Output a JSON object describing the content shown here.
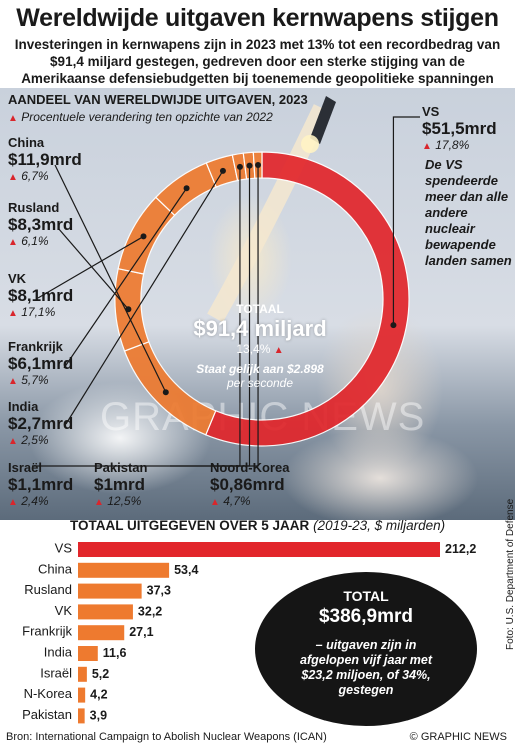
{
  "header": {
    "title": "Wereldwijde uitgaven kernwapens stijgen",
    "subtitle": "Investeringen in kernwapens zijn in 2023 met 13% tot een recordbedrag van $91,4 miljard gestegen, gedreven door een sterke stijging van de Amerikaanse defensiebudgetten bij toenemende geopolitieke spanningen"
  },
  "donut": {
    "heading": "AANDEEL VAN WERELDWIJDE UITGAVEN, 2023",
    "note": "Procentuele verandering ten opzichte van 2022",
    "total_label": "TOTAAL",
    "total_value": "$91,4 miljard",
    "total_change": "13,4%",
    "per_second_line1": "Staat gelijk aan $2.898",
    "per_second_line2": "per seconde",
    "us_note": "De VS spendeerde meer dan alle andere nucleair bewapende landen samen",
    "colors": {
      "us": "#e2262b",
      "others": "#ee7a2f",
      "marker": "#d9262c"
    }
  },
  "labels": {
    "us": {
      "name": "VS",
      "value": "$51,5mrd",
      "pct": "17,8%"
    },
    "china": {
      "name": "China",
      "value": "$11,9mrd",
      "pct": "6,7%"
    },
    "russia": {
      "name": "Rusland",
      "value": "$8,3mrd",
      "pct": "6,1%"
    },
    "uk": {
      "name": "VK",
      "value": "$8,1mrd",
      "pct": "17,1%"
    },
    "france": {
      "name": "Frankrijk",
      "value": "$6,1mrd",
      "pct": "5,7%"
    },
    "india": {
      "name": "India",
      "value": "$2,7mrd",
      "pct": "2,5%"
    },
    "israel": {
      "name": "Israël",
      "value": "$1,1mrd",
      "pct": "2,4%"
    },
    "pakistan": {
      "name": "Pakistan",
      "value": "$1mrd",
      "pct": "12,5%"
    },
    "nkorea": {
      "name": "Noord-Korea",
      "value": "$0,86mrd",
      "pct": "4,7%"
    }
  },
  "chart_data": [
    {
      "type": "pie",
      "title": "AANDEEL VAN WERELDWIJDE UITGAVEN, 2023",
      "unit": "$ miljard",
      "categories": [
        "VS",
        "China",
        "Rusland",
        "VK",
        "Frankrijk",
        "India",
        "Israël",
        "Pakistan",
        "Noord-Korea"
      ],
      "values": [
        51.5,
        11.9,
        8.3,
        8.1,
        6.1,
        2.7,
        1.1,
        1.0,
        0.86
      ],
      "change_vs_2022_pct": [
        17.8,
        6.7,
        6.1,
        17.1,
        5.7,
        2.5,
        2.4,
        12.5,
        4.7
      ],
      "total": 91.4
    },
    {
      "type": "bar",
      "orientation": "horizontal",
      "title": "TOTAAL UITGEGEVEN OVER 5 JAAR",
      "subtitle": "(2019-23, $ miljarden)",
      "categories": [
        "VS",
        "China",
        "Rusland",
        "VK",
        "Frankrijk",
        "India",
        "Israël",
        "N-Korea",
        "Pakistan"
      ],
      "values": [
        212.2,
        53.4,
        37.3,
        32.2,
        27.1,
        11.6,
        5.2,
        4.2,
        3.9
      ],
      "value_labels": [
        "212,2",
        "53,4",
        "37,3",
        "32,2",
        "27,1",
        "11,6",
        "5,2",
        "4,2",
        "3,9"
      ],
      "xlim": [
        0,
        212.2
      ],
      "colors": {
        "first": "#e2262b",
        "rest": "#ee7a2f"
      }
    }
  ],
  "bars": {
    "heading": "TOTAAL UITGEGEVEN OVER 5 JAAR",
    "heading_unit": "(2019-23, $ miljarden)",
    "total_label": "TOTAL",
    "total_value": "$386,9mrd",
    "total_note": "– uitgaven zijn in afgelopen vijf jaar met $23,2 miljoen, of 34%, gestegen"
  },
  "footer": {
    "source": "Bron: International Campaign to Abolish Nuclear Weapons (ICAN)",
    "credit": "© GRAPHIC NEWS",
    "photo_credit": "Foto: U.S. Department of Defense",
    "watermark": "GRAPHIC NEWS"
  }
}
